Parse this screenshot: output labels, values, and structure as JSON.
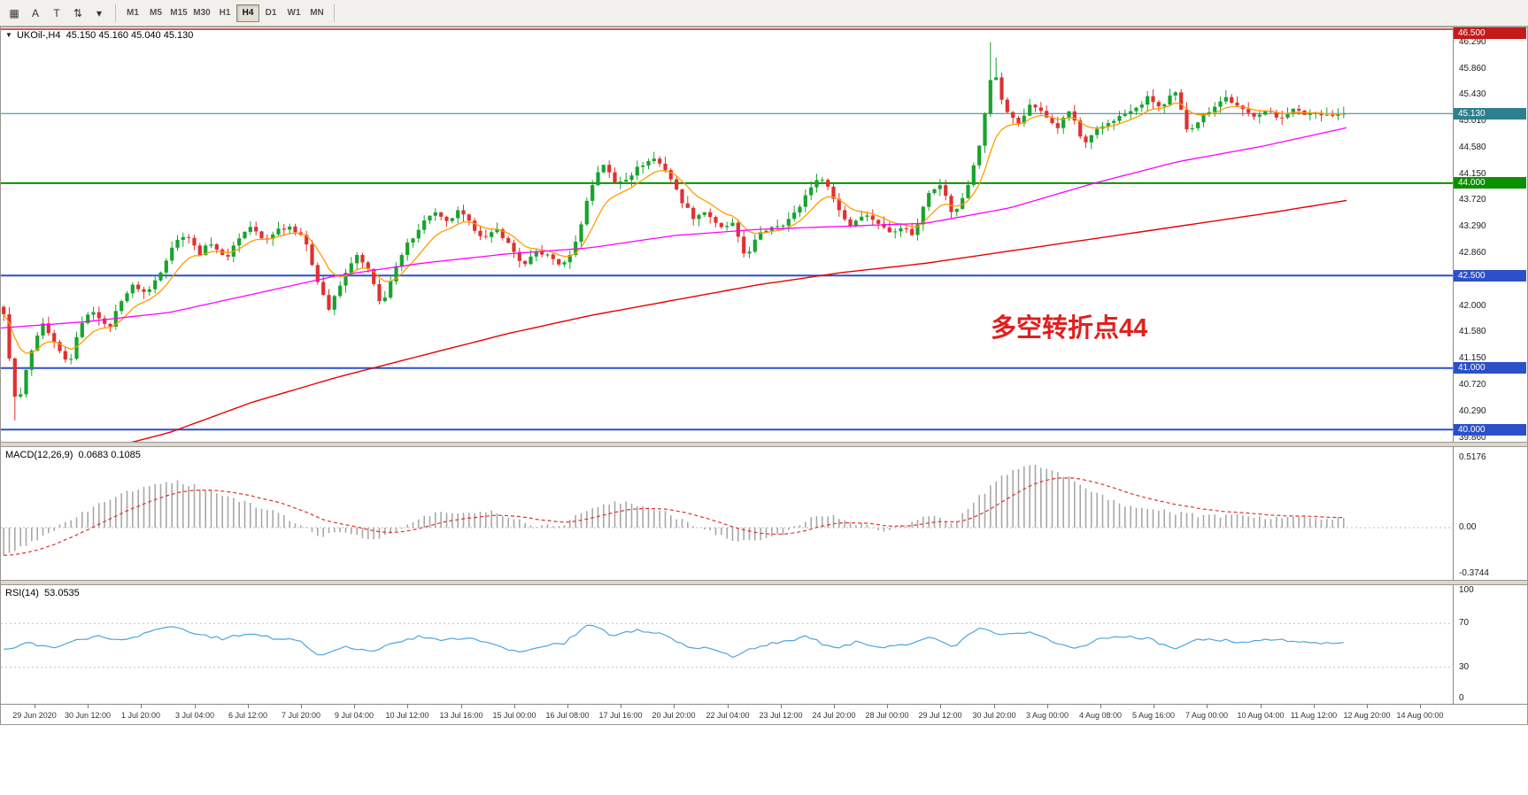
{
  "toolbar": {
    "icons": [
      {
        "name": "charts-grid-icon",
        "glyph": "▦"
      },
      {
        "name": "cursor-tool-icon",
        "glyph": "A"
      },
      {
        "name": "text-tool-icon",
        "glyph": "T"
      },
      {
        "name": "indicators-icon",
        "glyph": "⇅"
      },
      {
        "name": "indicators-dropdown-icon",
        "glyph": "▾"
      }
    ],
    "timeframes": [
      {
        "label": "M1",
        "active": false
      },
      {
        "label": "M5",
        "active": false
      },
      {
        "label": "M15",
        "active": false
      },
      {
        "label": "M30",
        "active": false
      },
      {
        "label": "H1",
        "active": false
      },
      {
        "label": "H4",
        "active": true
      },
      {
        "label": "D1",
        "active": false
      },
      {
        "label": "W1",
        "active": false
      },
      {
        "label": "MN",
        "active": false
      }
    ]
  },
  "chart": {
    "symbol_tf": "UKOil-,H4",
    "ohlc": "45.150 45.160 45.040 45.130",
    "macd_label": "MACD(12,26,9)",
    "macd_values": "0.0683 0.1085",
    "rsi_label": "RSI(14)",
    "rsi_value": "53.0535",
    "annotation": {
      "text": "多空转折点44",
      "color": "#e01f1f"
    }
  },
  "chart_data": [
    {
      "type": "candlestick",
      "symbol": "UKOil-",
      "timeframe": "H4",
      "ohlc_display": {
        "open": 45.15,
        "high": 45.16,
        "low": 45.04,
        "close": 45.13
      },
      "price_range": [
        39.86,
        46.5
      ],
      "last": 45.13,
      "drop_low": 40.15,
      "spike": {
        "frac": 0.738,
        "high": 46.29
      },
      "up_color": "#18a32e",
      "down_color": "#e03030",
      "ma_fast_color": "#ff9c00",
      "ma_medium_color": "#ff00ff",
      "ma_slow_color": "#e80000",
      "close_keypoints": [
        41.85,
        40.3,
        41.2,
        41.7,
        41.35,
        41.05,
        41.75,
        41.95,
        41.6,
        42.1,
        42.35,
        42.2,
        42.55,
        43.0,
        43.2,
        42.85,
        43.05,
        42.75,
        43.1,
        43.3,
        43.05,
        43.25,
        43.3,
        43.15,
        42.5,
        41.95,
        42.4,
        42.85,
        42.6,
        42.0,
        42.55,
        43.0,
        43.3,
        43.55,
        43.35,
        43.55,
        43.3,
        43.1,
        43.25,
        42.95,
        42.65,
        42.9,
        42.8,
        42.65,
        43.05,
        43.85,
        44.35,
        44.0,
        44.1,
        44.3,
        44.4,
        44.2,
        43.75,
        43.45,
        43.55,
        43.25,
        43.35,
        42.8,
        43.15,
        43.3,
        43.35,
        43.55,
        43.95,
        44.1,
        43.65,
        43.3,
        43.5,
        43.4,
        43.2,
        43.3,
        43.15,
        43.85,
        44.0,
        43.45,
        43.9,
        44.6,
        45.9,
        45.15,
        45.0,
        45.3,
        45.1,
        44.9,
        45.2,
        44.6,
        44.85,
        45.0,
        45.1,
        45.2,
        45.4,
        45.2,
        45.5,
        44.85,
        45.05,
        45.25,
        45.4,
        45.2,
        45.1,
        45.18,
        45.05,
        45.2,
        45.12,
        45.15,
        45.1,
        45.13
      ],
      "ma_medium_keypoints": [
        41.65,
        41.75,
        41.9,
        42.2,
        42.5,
        42.7,
        42.85,
        42.95,
        43.15,
        43.25,
        43.3,
        43.35,
        43.6,
        44.0,
        44.35,
        44.6,
        44.9
      ],
      "ma_slow_keypoints": [
        39.2,
        39.6,
        39.95,
        40.45,
        40.85,
        41.2,
        41.55,
        41.85,
        42.1,
        42.35,
        42.55,
        42.7,
        42.9,
        43.1,
        43.3,
        43.5,
        43.72
      ],
      "hlines": [
        {
          "price": 46.5,
          "color": "#b22222",
          "width": 1.6
        },
        {
          "price": 45.13,
          "color": "#2e7f8f",
          "width": 1
        },
        {
          "price": 44.0,
          "color": "#0a9000",
          "width": 2
        },
        {
          "price": 42.5,
          "color": "#2b50c8",
          "width": 2
        },
        {
          "price": 41.0,
          "color": "#2b50c8",
          "width": 2
        },
        {
          "price": 40.0,
          "color": "#2b50c8",
          "width": 2
        }
      ],
      "price_ticks": [
        "46.290",
        "45.860",
        "45.430",
        "45.010",
        "44.580",
        "44.150",
        "43.720",
        "43.290",
        "42.860",
        "42.000",
        "41.580",
        "41.150",
        "40.720",
        "40.290",
        "39.860"
      ],
      "price_badges": [
        {
          "label": "46.500",
          "value": 46.5,
          "color": "#c41a1a"
        },
        {
          "label": "45.130",
          "value": 45.13,
          "color": "#2e7f8f"
        },
        {
          "label": "44.000",
          "value": 44.0,
          "color": "#0a9000"
        },
        {
          "label": "42.500",
          "value": 42.5,
          "color": "#2b50c8"
        },
        {
          "label": "41.000",
          "value": 41.0,
          "color": "#2b50c8"
        },
        {
          "label": "40.000",
          "value": 40.0,
          "color": "#2b50c8"
        }
      ],
      "x_labels": [
        "29 Jun 2020",
        "30 Jun 12:00",
        "1 Jul 20:00",
        "3 Jul 04:00",
        "6 Jul 12:00",
        "7 Jul 20:00",
        "9 Jul 04:00",
        "10 Jul 12:00",
        "13 Jul 16:00",
        "15 Jul 00:00",
        "16 Jul 08:00",
        "17 Jul 16:00",
        "20 Jul 20:00",
        "22 Jul 04:00",
        "23 Jul 12:00",
        "24 Jul 20:00",
        "28 Jul 00:00",
        "29 Jul 12:00",
        "30 Jul 20:00",
        "3 Aug 00:00",
        "4 Aug 08:00",
        "5 Aug 16:00",
        "7 Aug 00:00",
        "10 Aug 04:00",
        "11 Aug 12:00",
        "12 Aug 20:00",
        "14 Aug 00:00"
      ]
    },
    {
      "type": "macd_histogram",
      "label": "MACD(12,26,9)",
      "current_values": [
        0.0683,
        0.1085
      ],
      "range": [
        -0.3744,
        0.5176
      ],
      "ticks": [
        {
          "label": "0.5176",
          "value": 0.5176
        },
        {
          "label": "0.00",
          "value": 0
        },
        {
          "label": "-0.3744",
          "value": -0.3744
        }
      ],
      "histogram_color": "#a8a8a8",
      "signal_color": "#e03030",
      "keypoints": [
        -0.22,
        -0.12,
        -0.02,
        0.08,
        0.18,
        0.26,
        0.32,
        0.345,
        0.3,
        0.24,
        0.18,
        0.12,
        0.04,
        -0.06,
        -0.03,
        -0.09,
        -0.04,
        0.06,
        0.12,
        0.1,
        0.13,
        0.06,
        0.01,
        0.03,
        0.14,
        0.19,
        0.17,
        0.13,
        0.04,
        -0.03,
        -0.09,
        -0.1,
        -0.04,
        0.06,
        0.09,
        0.03,
        -0.02,
        0.01,
        0.09,
        0.04,
        0.22,
        0.38,
        0.47,
        0.44,
        0.34,
        0.24,
        0.17,
        0.14,
        0.11,
        0.09,
        0.08,
        0.09,
        0.07,
        0.08,
        0.07,
        0.068
      ]
    },
    {
      "type": "rsi_line",
      "label": "RSI(14)",
      "current_value": 53.0535,
      "range": [
        0,
        100
      ],
      "levels": [
        30,
        70
      ],
      "ticks": [
        {
          "label": "100",
          "value": 100
        },
        {
          "label": "70",
          "value": 70
        },
        {
          "label": "30",
          "value": 30
        },
        {
          "label": "0",
          "value": 0
        }
      ],
      "line_color": "#4ba6dd",
      "keypoints": [
        46,
        52,
        47,
        55,
        58,
        54,
        62,
        68,
        60,
        56,
        61,
        57,
        56,
        40,
        50,
        44,
        52,
        58,
        54,
        57,
        51,
        44,
        49,
        52,
        70,
        59,
        64,
        61,
        49,
        47,
        39,
        50,
        53,
        58,
        47,
        53,
        47,
        51,
        58,
        49,
        66,
        59,
        62,
        54,
        47,
        56,
        58,
        56,
        47,
        56,
        55,
        52,
        56,
        54,
        52,
        53
      ]
    }
  ]
}
